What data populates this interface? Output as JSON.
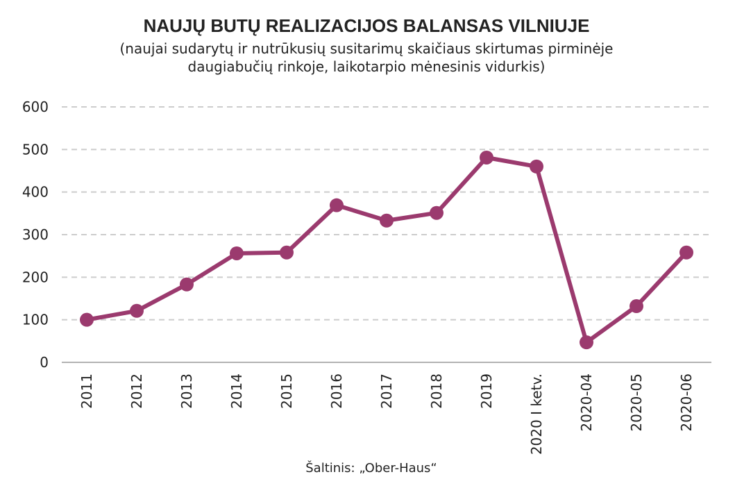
{
  "chart_data": {
    "type": "line",
    "title": "NAUJŲ BUTŲ REALIZACIJOS BALANSAS VILNIUJE",
    "subtitle": [
      "(naujai sudarytų ir nutrūkusių susitarimų skaičiaus skirtumas pirminėje",
      "daugiabučių rinkoje, laikotarpio mėnesinis vidurkis)"
    ],
    "source": "Šaltinis: „Ober-Haus“",
    "categories": [
      "2011",
      "2012",
      "2013",
      "2014",
      "2015",
      "2016",
      "2017",
      "2018",
      "2019",
      "2020 I ketv.",
      "2020-04",
      "2020-05",
      "2020-06"
    ],
    "values": [
      100,
      121,
      183,
      256,
      258,
      369,
      333,
      351,
      481,
      460,
      47,
      132,
      258
    ],
    "color": "#9b3a6e",
    "ylim": [
      0,
      600
    ],
    "yticks": [
      0,
      100,
      200,
      300,
      400,
      500,
      600
    ],
    "grid": true
  }
}
